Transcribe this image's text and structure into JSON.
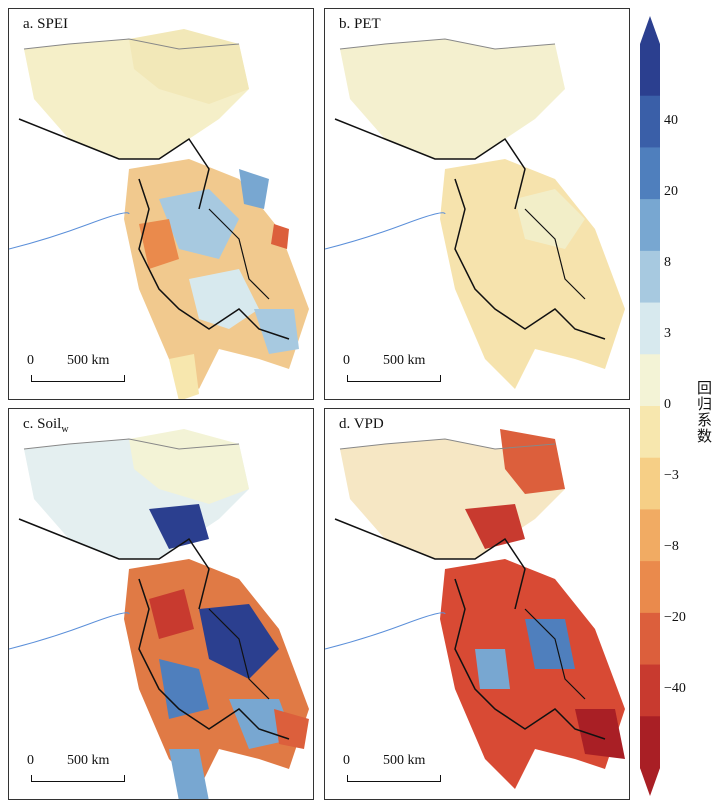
{
  "panels": [
    {
      "id": "a",
      "label": "a. SPEI",
      "theme": "mixed-light"
    },
    {
      "id": "b",
      "label": "b. PET",
      "theme": "pale"
    },
    {
      "id": "c",
      "label_main": "c. Soil",
      "label_sub": "w",
      "theme": "mixed-strong"
    },
    {
      "id": "d",
      "label": "d. VPD",
      "theme": "red-strong"
    }
  ],
  "scale_bar": {
    "zero": "0",
    "distance": "500 km"
  },
  "colorbar": {
    "title": "回归系数",
    "ticks": [
      "40",
      "20",
      "8",
      "3",
      "0",
      "−3",
      "−8",
      "−20",
      "−40"
    ],
    "colors": [
      "#2b3f8f",
      "#3a5fa8",
      "#4f7fbd",
      "#78a7d1",
      "#a7c9e0",
      "#d7e9ee",
      "#f3f3d6",
      "#f7e7ae",
      "#f6cf86",
      "#f1ab63",
      "#ea8a4c",
      "#dc5f3c",
      "#c83a2f",
      "#a91f25"
    ]
  }
}
